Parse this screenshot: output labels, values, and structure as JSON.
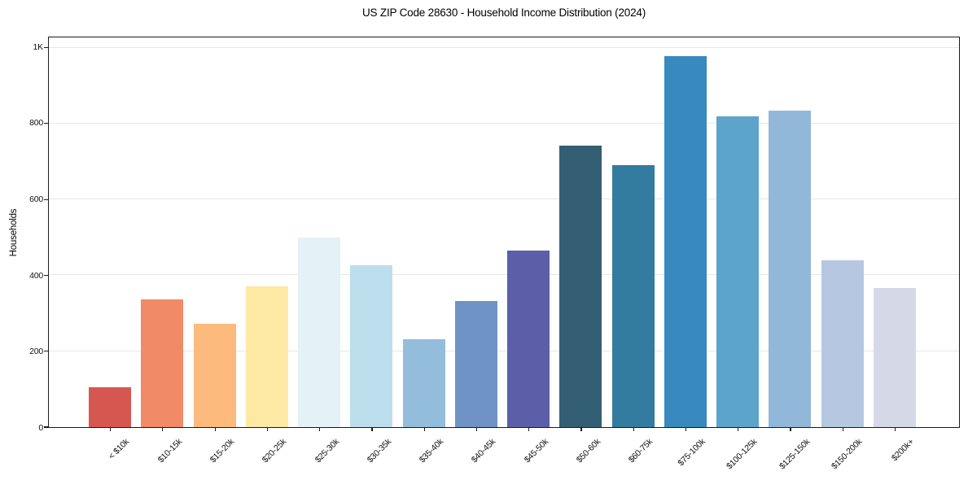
{
  "title": "US ZIP Code 28630 - Household Income Distribution (2024)",
  "y_axis": {
    "label": "Households"
  },
  "chart_data": {
    "type": "bar",
    "title": "US ZIP Code 28630 - Household Income Distribution (2024)",
    "xlabel": "",
    "ylabel": "Households",
    "ylim": [
      0,
      1027
    ],
    "grid": "horizontal-only",
    "legend": "none",
    "y_ticks": [
      0,
      200,
      400,
      600,
      800,
      1000
    ],
    "y_tick_labels": [
      "0",
      "200",
      "400",
      "600",
      "800",
      "1K"
    ],
    "categories": [
      "< $10k",
      "$10-15k",
      "$15-20k",
      "$20-25k",
      "$25-30k",
      "$30-35k",
      "$35-40k",
      "$40-45k",
      "$45-50k",
      "$50-60k",
      "$60-75k",
      "$75-100k",
      "$100-125k",
      "$125-150k",
      "$150-200k",
      "$200k+"
    ],
    "values": [
      105,
      336,
      273,
      371,
      500,
      427,
      231,
      333,
      465,
      742,
      691,
      978,
      818,
      835,
      439,
      367
    ],
    "bar_colors": [
      "#d6574f",
      "#f18a66",
      "#fcbb7c",
      "#fde8a4",
      "#e4f1f6",
      "#bcdeec",
      "#93bddb",
      "#6e93c4",
      "#5c5fa8",
      "#345e74",
      "#347ba0",
      "#3889bd",
      "#5da4cb",
      "#91b8d9",
      "#b6c7e1",
      "#d5d8e7"
    ]
  }
}
